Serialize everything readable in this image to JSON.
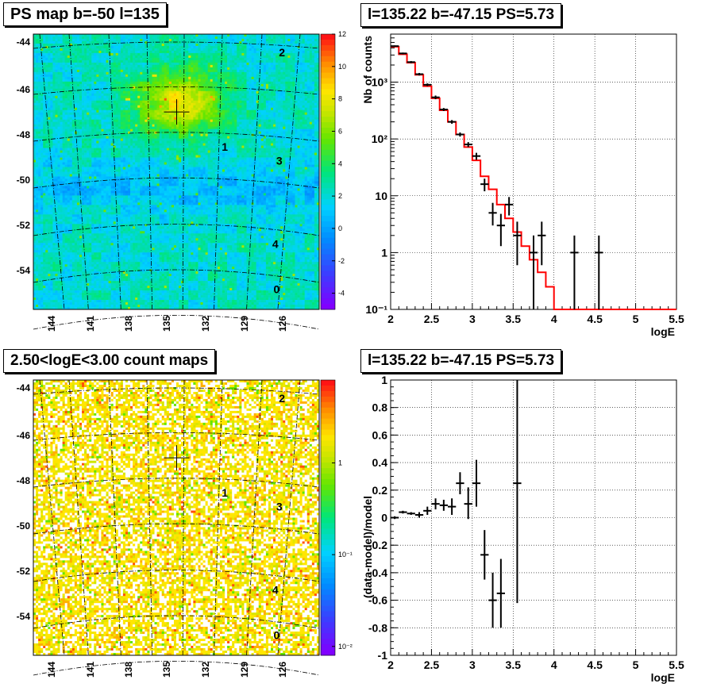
{
  "titles": {
    "map_top": "PS map b=-50 l=135",
    "spec_top": "l=135.22 b=-47.15 PS=5.73",
    "map_bottom": "2.50<logE<3.00 count maps",
    "spec_bottom": "l=135.22 b=-47.15 PS=5.73"
  },
  "colors": {
    "data": "#000000",
    "model": "#ff0000",
    "grid": "#000000"
  },
  "chart_data": [
    {
      "type": "heatmap",
      "panel": "map_top",
      "ylabels": [
        "-44",
        "-46",
        "-48",
        "-50",
        "-52",
        "-54"
      ],
      "xlabels": [
        "144",
        "141",
        "138",
        "135",
        "132",
        "129",
        "126"
      ],
      "colorbar_ticks": [
        "12",
        "10",
        "8",
        "6",
        "4",
        "2",
        "0",
        "-2",
        "-4"
      ],
      "zlim": [
        -5,
        12
      ],
      "background_value": 1,
      "markers": [
        {
          "label": "2",
          "l": 127.3,
          "b": -44.5
        },
        {
          "label": "1",
          "l": 131.6,
          "b": -48.7
        },
        {
          "label": "3",
          "l": 127.5,
          "b": -49.3
        },
        {
          "label": "4",
          "l": 127.8,
          "b": -53.0
        },
        {
          "label": "0",
          "l": 127.7,
          "b": -55.0
        }
      ],
      "source": {
        "l": 135.22,
        "b": -47.15
      }
    },
    {
      "type": "line",
      "panel": "spec_top",
      "xlabel": "logE",
      "ylabel": "Nb of counts",
      "xlim": [
        2,
        5.5
      ],
      "ylim": [
        0.1,
        7000
      ],
      "yscale": "log",
      "xticks": [
        "2",
        "2.5",
        "3",
        "3.5",
        "4",
        "4.5",
        "5",
        "5.5"
      ],
      "yticks": [
        {
          "v": 0.1,
          "label": "10⁻¹"
        },
        {
          "v": 1,
          "label": "1"
        },
        {
          "v": 10,
          "label": "10"
        },
        {
          "v": 100,
          "label": "10²"
        },
        {
          "v": 1000,
          "label": "10³"
        }
      ],
      "grid": true,
      "model_edges": [
        2.0,
        2.1,
        2.2,
        2.3,
        2.4,
        2.5,
        2.6,
        2.7,
        2.8,
        2.9,
        3.0,
        3.1,
        3.2,
        3.3,
        3.4,
        3.5,
        3.6,
        3.7,
        3.8,
        3.9,
        4.0,
        4.1,
        4.2,
        4.3,
        4.4,
        4.5,
        4.6,
        4.7,
        4.8,
        4.9,
        5.0,
        5.1,
        5.2,
        5.3,
        5.4,
        5.5
      ],
      "model_values": [
        4200,
        3100,
        2200,
        1350,
        850,
        520,
        320,
        200,
        120,
        72,
        42,
        22,
        13,
        7,
        4,
        2.3,
        1.3,
        0.75,
        0.45,
        0.25,
        0.1,
        0.1,
        0.1,
        0.1,
        0.1,
        0.1,
        0.1,
        0.1,
        0.1,
        0.1,
        0.1,
        0.1,
        0.1,
        0.1,
        0.1
      ],
      "data_points": [
        {
          "x": 2.05,
          "y": 4300,
          "lo": 4180,
          "hi": 4420
        },
        {
          "x": 2.15,
          "y": 3200,
          "lo": 3090,
          "hi": 3310
        },
        {
          "x": 2.25,
          "y": 2250,
          "lo": 2150,
          "hi": 2350
        },
        {
          "x": 2.35,
          "y": 1380,
          "lo": 1310,
          "hi": 1450
        },
        {
          "x": 2.45,
          "y": 900,
          "lo": 850,
          "hi": 950
        },
        {
          "x": 2.55,
          "y": 540,
          "lo": 500,
          "hi": 580
        },
        {
          "x": 2.65,
          "y": 330,
          "lo": 310,
          "hi": 350
        },
        {
          "x": 2.75,
          "y": 200,
          "lo": 185,
          "hi": 215
        },
        {
          "x": 2.85,
          "y": 120,
          "lo": 110,
          "hi": 130
        },
        {
          "x": 2.95,
          "y": 80,
          "lo": 72,
          "hi": 88
        },
        {
          "x": 3.05,
          "y": 50,
          "lo": 43,
          "hi": 57
        },
        {
          "x": 3.15,
          "y": 16,
          "lo": 12,
          "hi": 20
        },
        {
          "x": 3.25,
          "y": 5,
          "lo": 3,
          "hi": 7.5
        },
        {
          "x": 3.35,
          "y": 3,
          "lo": 1.3,
          "hi": 4.8
        },
        {
          "x": 3.45,
          "y": 7,
          "lo": 4.5,
          "hi": 9.5
        },
        {
          "x": 3.55,
          "y": 2,
          "lo": 0.6,
          "hi": 3.5
        },
        {
          "x": 3.75,
          "y": 1,
          "lo": 0.1,
          "hi": 2
        },
        {
          "x": 3.85,
          "y": 2,
          "lo": 0.6,
          "hi": 3.5
        },
        {
          "x": 4.25,
          "y": 1,
          "lo": 0.1,
          "hi": 2
        },
        {
          "x": 4.55,
          "y": 1,
          "lo": 0.1,
          "hi": 2
        }
      ]
    },
    {
      "type": "heatmap",
      "panel": "map_bottom",
      "ylabels": [
        "-44",
        "-46",
        "-48",
        "-50",
        "-52",
        "-54"
      ],
      "xlabels": [
        "144",
        "141",
        "138",
        "135",
        "132",
        "129",
        "126"
      ],
      "colorbar_ticks": [
        {
          "v": 1,
          "label": "1"
        },
        {
          "v": 0.1,
          "label": "10⁻¹"
        },
        {
          "v": 0.01,
          "label": "10⁻²"
        }
      ],
      "zscale": "log",
      "zlim": [
        0.008,
        8
      ],
      "markers": [
        {
          "label": "2",
          "l": 127.3,
          "b": -44.5
        },
        {
          "label": "1",
          "l": 131.6,
          "b": -48.7
        },
        {
          "label": "3",
          "l": 127.5,
          "b": -49.3
        },
        {
          "label": "4",
          "l": 127.8,
          "b": -53.0
        },
        {
          "label": "0",
          "l": 127.7,
          "b": -55.0
        }
      ],
      "source": {
        "l": 135.22,
        "b": -47.15
      }
    },
    {
      "type": "scatter",
      "panel": "spec_bottom",
      "xlabel": "logE",
      "ylabel": "(data-model)/model",
      "xlim": [
        2,
        5.5
      ],
      "ylim": [
        -1,
        1
      ],
      "xticks": [
        "2",
        "2.5",
        "3",
        "3.5",
        "4",
        "4.5",
        "5",
        "5.5"
      ],
      "yticks": [
        "1",
        "0.8",
        "0.6",
        "0.4",
        "0.2",
        "0",
        "-0.2",
        "-0.4",
        "-0.6",
        "-0.8",
        "-1"
      ],
      "grid": true,
      "points": [
        {
          "x": 2.05,
          "y": 0.0,
          "lo": -0.01,
          "hi": 0.01
        },
        {
          "x": 2.15,
          "y": 0.04,
          "lo": 0.03,
          "hi": 0.05
        },
        {
          "x": 2.25,
          "y": 0.03,
          "lo": 0.02,
          "hi": 0.04
        },
        {
          "x": 2.35,
          "y": 0.02,
          "lo": 0.0,
          "hi": 0.04
        },
        {
          "x": 2.45,
          "y": 0.05,
          "lo": 0.02,
          "hi": 0.08
        },
        {
          "x": 2.55,
          "y": 0.1,
          "lo": 0.06,
          "hi": 0.14
        },
        {
          "x": 2.65,
          "y": 0.09,
          "lo": 0.05,
          "hi": 0.13
        },
        {
          "x": 2.75,
          "y": 0.08,
          "lo": 0.02,
          "hi": 0.14
        },
        {
          "x": 2.85,
          "y": 0.25,
          "lo": 0.17,
          "hi": 0.33
        },
        {
          "x": 2.95,
          "y": 0.1,
          "lo": -0.01,
          "hi": 0.22
        },
        {
          "x": 3.05,
          "y": 0.25,
          "lo": 0.08,
          "hi": 0.42
        },
        {
          "x": 3.15,
          "y": -0.27,
          "lo": -0.45,
          "hi": -0.09
        },
        {
          "x": 3.25,
          "y": -0.6,
          "lo": -0.8,
          "hi": -0.4
        },
        {
          "x": 3.35,
          "y": -0.55,
          "lo": -0.8,
          "hi": -0.3
        },
        {
          "x": 3.55,
          "y": 0.25,
          "lo": -0.62,
          "hi": 1.0
        }
      ]
    }
  ]
}
